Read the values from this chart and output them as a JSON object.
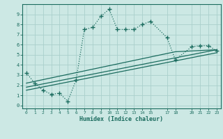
{
  "xlabel": "Humidex (Indice chaleur)",
  "bg_color": "#cce8e4",
  "grid_color": "#aad0cc",
  "line_color": "#1a6b5e",
  "xlim": [
    -0.5,
    23.5
  ],
  "ylim": [
    -0.3,
    10.0
  ],
  "xticks": [
    0,
    1,
    2,
    3,
    4,
    5,
    6,
    7,
    8,
    9,
    10,
    11,
    12,
    13,
    14,
    15,
    17,
    18,
    20,
    21,
    22,
    23
  ],
  "yticks": [
    0,
    1,
    2,
    3,
    4,
    5,
    6,
    7,
    8,
    9
  ],
  "main_x": [
    0,
    1,
    2,
    3,
    4,
    5,
    6,
    7,
    8,
    9,
    10,
    11,
    12,
    13,
    14,
    15,
    17,
    18,
    20,
    21,
    22,
    23
  ],
  "main_y": [
    3.2,
    2.2,
    1.5,
    1.1,
    1.2,
    0.4,
    2.5,
    7.5,
    7.7,
    8.8,
    9.5,
    7.5,
    7.5,
    7.5,
    8.0,
    8.3,
    6.7,
    4.5,
    5.8,
    5.9,
    5.9,
    5.4
  ],
  "line2_x": [
    0,
    23
  ],
  "line2_y": [
    1.5,
    5.2
  ],
  "line3_x": [
    0,
    23
  ],
  "line3_y": [
    1.8,
    5.5
  ],
  "line4_x": [
    0,
    18,
    23
  ],
  "line4_y": [
    2.2,
    5.3,
    5.5
  ]
}
